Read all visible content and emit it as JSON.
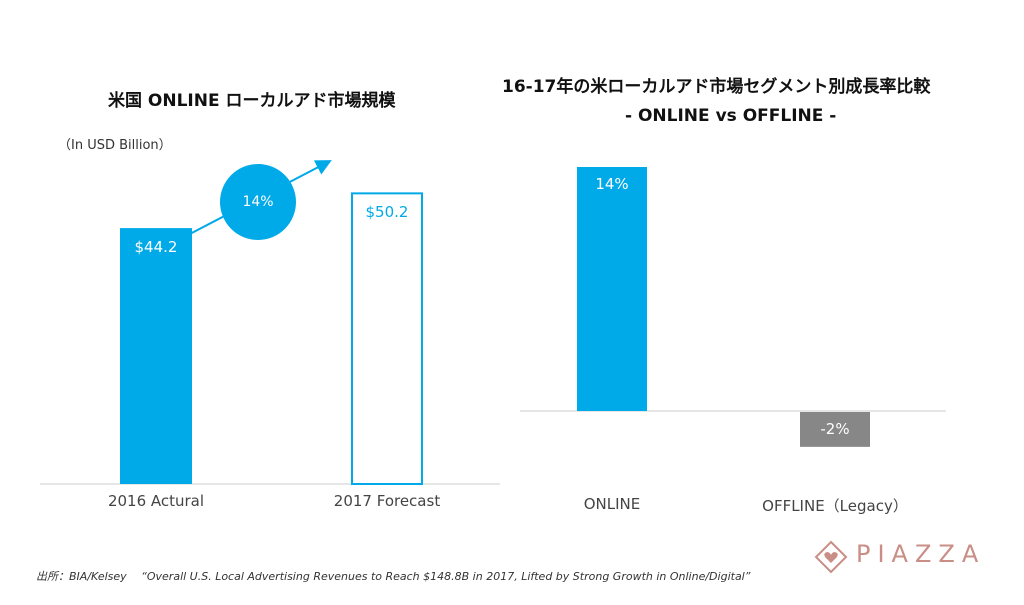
{
  "left_chart": {
    "title": "米国 ONLINE ローカルアド市場規模",
    "unit_label": "（In USD Billion）",
    "growth_label": "14%",
    "colors": {
      "accent": "#00a9e8",
      "axis": "#cccccc"
    }
  },
  "right_chart": {
    "title_line1": "16-17年の米ローカルアド市場セグメント別成長率比較",
    "title_line2": "- ONLINE vs OFFLINE -",
    "colors": {
      "online": "#00a9e8",
      "offline": "#878787"
    }
  },
  "footer": {
    "source": "出所：BIA/Kelsey　 “Overall U.S. Local Advertising Revenues to Reach $148.8B in 2017, Lifted by Strong Growth in Online/Digital”"
  },
  "brand": {
    "name": "PIAZZA",
    "color": "#c98e86"
  },
  "chart_data": [
    {
      "type": "bar",
      "title": "米国 ONLINE ローカルアド市場規模",
      "unit": "In USD Billion",
      "categories": [
        "2016 Actural",
        "2017 Forecast"
      ],
      "values": [
        44.2,
        50.2
      ],
      "value_labels": [
        "$44.2",
        "$50.2"
      ],
      "ylim": [
        0,
        57
      ],
      "styles": [
        "filled",
        "outline"
      ],
      "annotation": "14%"
    },
    {
      "type": "bar",
      "title": "16-17年の米ローカルアド市場セグメント別成長率比較 - ONLINE vs OFFLINE -",
      "categories": [
        "ONLINE",
        "OFFLINE（Legacy）"
      ],
      "values": [
        14,
        -2
      ],
      "value_labels": [
        "14%",
        "-2%"
      ],
      "ylim": [
        -3,
        14
      ]
    }
  ]
}
